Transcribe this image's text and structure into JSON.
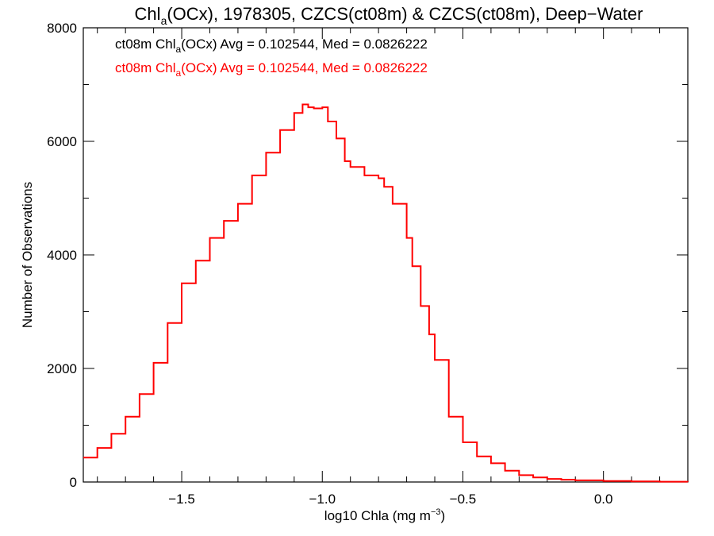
{
  "chart_data": {
    "type": "histogram-step",
    "title_parts": [
      "Chl",
      "a",
      "(OCx), 1978305, CZCS(ct08m) & CZCS(ct08m), Deep−Water"
    ],
    "xlabel_parts": [
      "log10 Chla (mg m",
      "−3",
      ")"
    ],
    "ylabel": "Number of Observations",
    "xlim": [
      -1.85,
      0.3
    ],
    "ylim": [
      0,
      8000
    ],
    "x_ticks": [
      -1.5,
      -1.0,
      -0.5,
      0.0
    ],
    "x_tick_labels": [
      "−1.5",
      "−1.0",
      "−0.5",
      "0.0"
    ],
    "y_ticks": [
      0,
      2000,
      4000,
      6000,
      8000
    ],
    "y_tick_labels": [
      "0",
      "2000",
      "4000",
      "6000",
      "8000"
    ],
    "series": [
      {
        "color": "#ff0000",
        "x": [
          -1.85,
          -1.8,
          -1.75,
          -1.7,
          -1.65,
          -1.6,
          -1.55,
          -1.5,
          -1.45,
          -1.4,
          -1.35,
          -1.3,
          -1.25,
          -1.2,
          -1.15,
          -1.1,
          -1.07,
          -1.05,
          -1.03,
          -1.0,
          -0.98,
          -0.95,
          -0.92,
          -0.9,
          -0.85,
          -0.8,
          -0.78,
          -0.75,
          -0.7,
          -0.68,
          -0.65,
          -0.62,
          -0.6,
          -0.55,
          -0.5,
          -0.45,
          -0.4,
          -0.35,
          -0.3,
          -0.25,
          -0.2,
          -0.15,
          -0.1,
          0.0,
          0.1,
          0.2,
          0.3
        ],
        "y": [
          430,
          600,
          850,
          1150,
          1550,
          2100,
          2800,
          3500,
          3900,
          4300,
          4600,
          4900,
          5400,
          5800,
          6200,
          6500,
          6650,
          6600,
          6580,
          6600,
          6350,
          6050,
          5650,
          5550,
          5400,
          5350,
          5200,
          4900,
          4300,
          3800,
          3100,
          2600,
          2150,
          1150,
          700,
          450,
          330,
          200,
          120,
          80,
          55,
          40,
          30,
          18,
          10,
          5,
          3
        ]
      }
    ],
    "annotations": [
      {
        "color": "#000000",
        "parts": [
          "ct08m Chl",
          "a",
          "(OCx) Avg = 0.102544, Med = 0.0826222"
        ]
      },
      {
        "color": "#ff0000",
        "parts": [
          "ct08m Chl",
          "a",
          "(OCx) Avg = 0.102544, Med = 0.0826222"
        ]
      }
    ]
  }
}
